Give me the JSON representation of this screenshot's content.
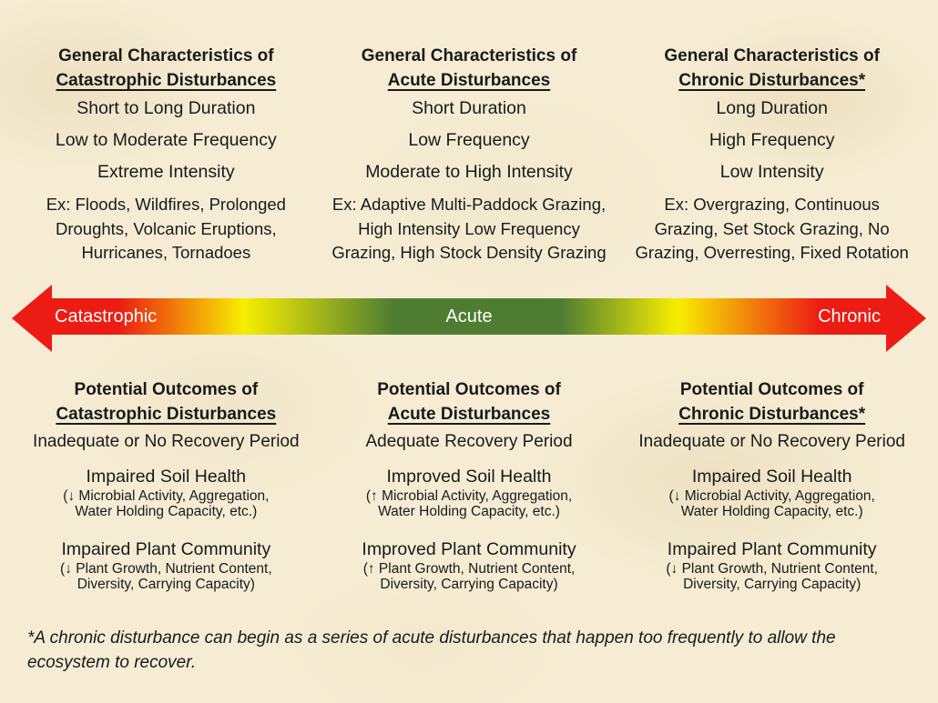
{
  "top_sections": [
    {
      "title_line1": "General Characteristics of",
      "title_line2": "Catastrophic Disturbances",
      "items": [
        "Short to Long Duration",
        "Low to Moderate Frequency",
        "Extreme Intensity"
      ],
      "example_lines": [
        "Ex: Floods, Wildfires, Prolonged",
        "Droughts, Volcanic Eruptions,",
        "Hurricanes, Tornadoes"
      ]
    },
    {
      "title_line1": "General Characteristics of",
      "title_line2": "Acute Disturbances",
      "items": [
        "Short Duration",
        "Low Frequency",
        "Moderate to High Intensity"
      ],
      "example_lines": [
        "Ex: Adaptive Multi-Paddock Grazing,",
        "High Intensity Low Frequency",
        "Grazing, High Stock Density Grazing"
      ]
    },
    {
      "title_line1": "General Characteristics of",
      "title_line2": "Chronic Disturbances*",
      "items": [
        "Long Duration",
        "High Frequency",
        "Low Intensity"
      ],
      "example_lines": [
        "Ex: Overgrazing, Continuous",
        "Grazing, Set Stock Grazing, No",
        "Grazing, Overresting, Fixed Rotation"
      ]
    }
  ],
  "gradient_arrow": {
    "label_left": "Catastrophic",
    "label_center": "Acute",
    "label_right": "Chronic",
    "colors": {
      "red": "#ec1c14",
      "orange": "#ec7c1a",
      "yellow": "#f6ee00",
      "green": "#4e7d32",
      "label_text": "#ffffff"
    }
  },
  "bottom_sections": [
    {
      "title_line1": "Potential Outcomes of",
      "title_line2": "Catastrophic Disturbances",
      "recovery": "Inadequate or No Recovery Period",
      "soil_title": "Impaired Soil Health",
      "soil_detail_lines": [
        "(↓ Microbial Activity, Aggregation,",
        "Water Holding Capacity, etc.)"
      ],
      "plant_title": "Impaired Plant Community",
      "plant_detail_lines": [
        "(↓ Plant Growth, Nutrient Content,",
        "Diversity, Carrying Capacity)"
      ]
    },
    {
      "title_line1": "Potential Outcomes of",
      "title_line2": "Acute Disturbances",
      "recovery": "Adequate Recovery Period",
      "soil_title": "Improved Soil Health",
      "soil_detail_lines": [
        "(↑ Microbial Activity, Aggregation,",
        "Water Holding Capacity, etc.)"
      ],
      "plant_title": "Improved Plant Community",
      "plant_detail_lines": [
        "(↑ Plant Growth, Nutrient Content,",
        "Diversity, Carrying Capacity)"
      ]
    },
    {
      "title_line1": "Potential Outcomes of",
      "title_line2": "Chronic Disturbances*",
      "recovery": "Inadequate or No Recovery Period",
      "soil_title": "Impaired Soil Health",
      "soil_detail_lines": [
        "(↓ Microbial Activity, Aggregation,",
        "Water Holding Capacity, etc.)"
      ],
      "plant_title": "Impaired Plant Community",
      "plant_detail_lines": [
        "(↓ Plant Growth, Nutrient Content,",
        "Diversity, Carrying Capacity)"
      ]
    }
  ],
  "footnote_lines": [
    "*A chronic disturbance can begin as a series of acute disturbances that happen too frequently to allow the",
    "ecosystem to recover."
  ],
  "background_color": "#f5ecd3"
}
